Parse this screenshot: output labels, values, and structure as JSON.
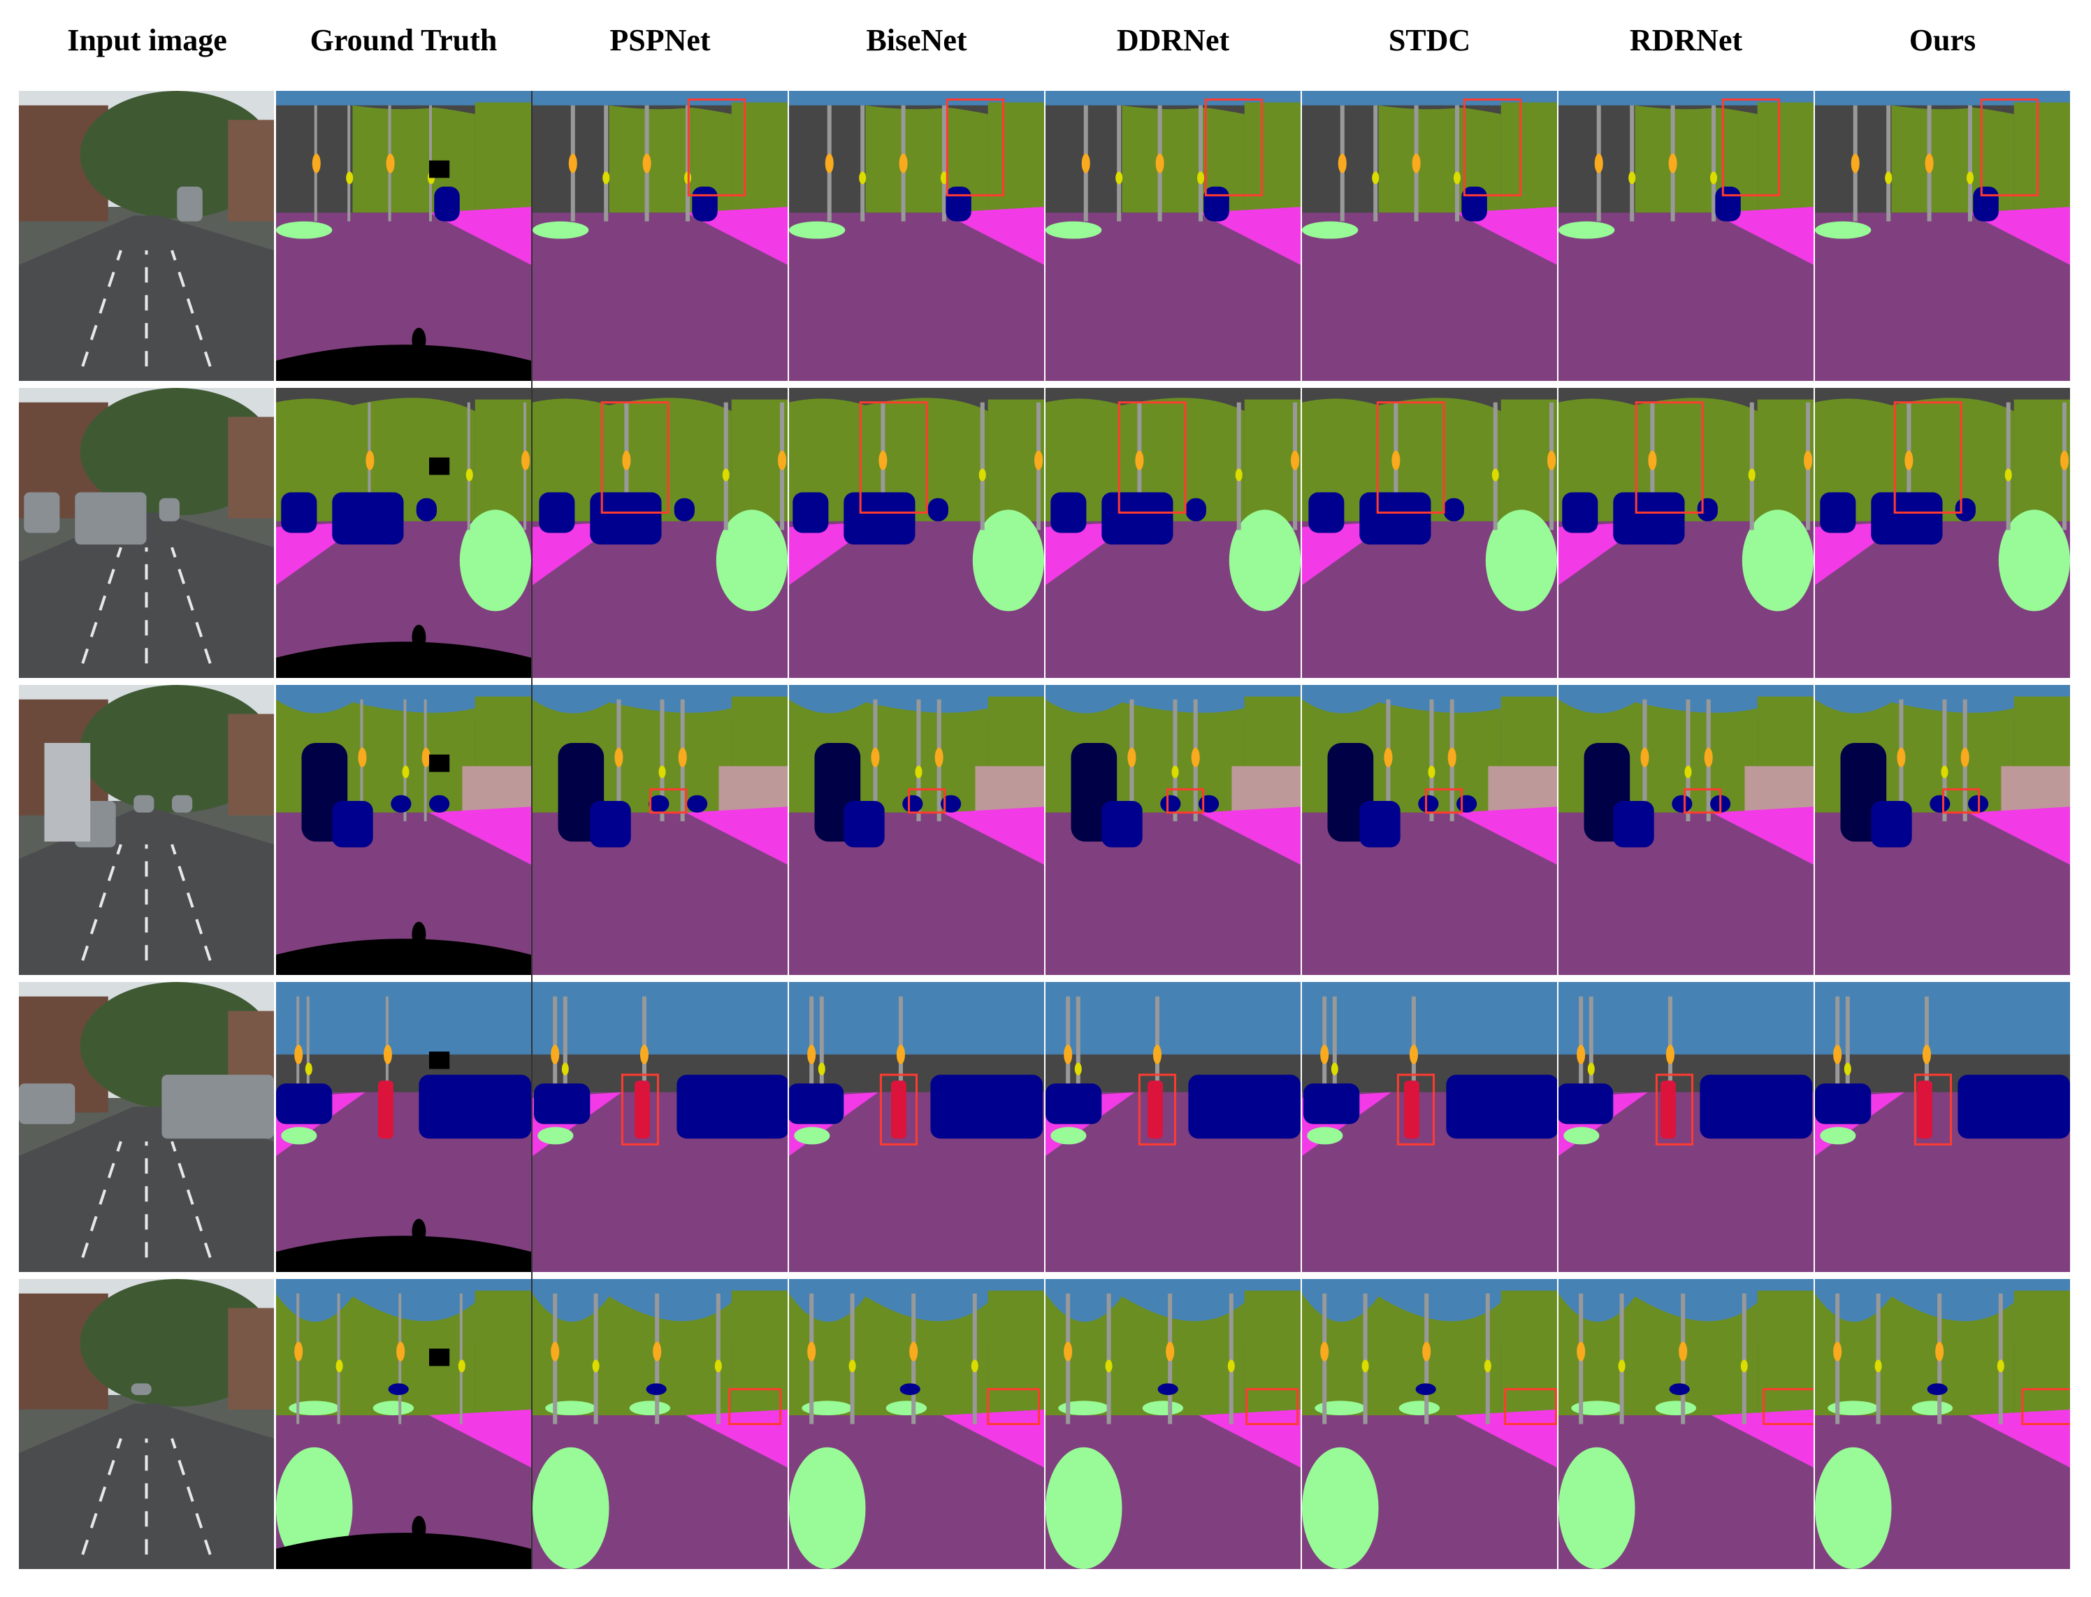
{
  "columns": [
    {
      "label": "Input image"
    },
    {
      "label": "Ground Truth"
    },
    {
      "label": "PSPNet"
    },
    {
      "label": "BiseNet"
    },
    {
      "label": "DDRNet"
    },
    {
      "label": "STDC"
    },
    {
      "label": "RDRNet"
    },
    {
      "label": "Ours"
    }
  ],
  "rows": 5,
  "palette": {
    "road": "#80407f",
    "sidewalk": "#f23ae6",
    "building": "#464646",
    "vegetation": "#6b8e23",
    "sky": "#4682b4",
    "car": "#00008e",
    "truck": "#000046",
    "pole": "#999999",
    "traffic_sign": "#dcdc00",
    "traffic_light": "#faaa1e",
    "terrain": "#98fb98",
    "person": "#dc143c",
    "wall": "#66669c",
    "fence": "#be9999",
    "ego_vehicle": "#000000",
    "highlight_box": "#ff3b30"
  }
}
